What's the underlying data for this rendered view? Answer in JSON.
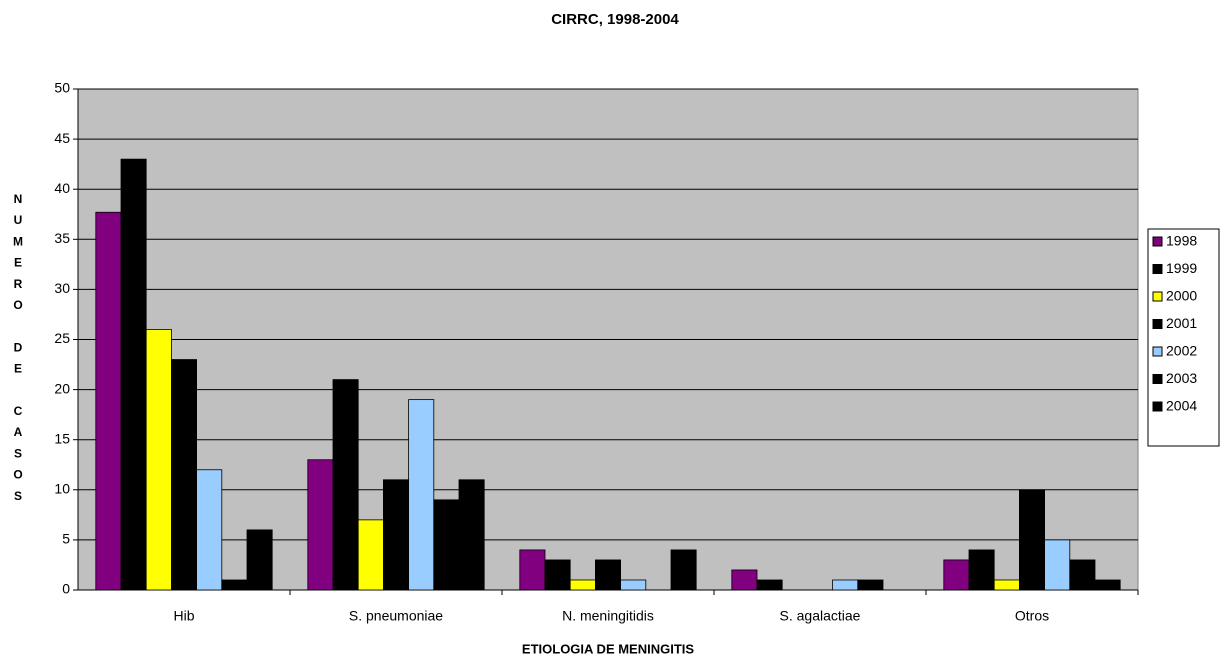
{
  "chart_data": {
    "type": "bar",
    "title": "CIRRC, 1998-2004",
    "ylabel": "NUMERO DE CASOS",
    "xlabel": "ETIOLOGIA DE MENINGITIS",
    "categories": [
      "Hib",
      "S. pneumoniae",
      "N. meningitidis",
      "S. agalactiae",
      "Otros"
    ],
    "series": [
      {
        "name": "1998",
        "color": "#800080",
        "values": [
          37.7,
          13,
          4,
          2,
          3
        ]
      },
      {
        "name": "1999",
        "color": "#000000",
        "values": [
          43,
          21,
          3,
          1,
          4
        ]
      },
      {
        "name": "2000",
        "color": "#ffff00",
        "values": [
          26,
          7,
          1,
          0,
          1
        ]
      },
      {
        "name": "2001",
        "color": "#000000",
        "values": [
          23,
          11,
          3,
          0,
          10
        ]
      },
      {
        "name": "2002",
        "color": "#99ccff",
        "values": [
          12,
          19,
          1,
          1,
          5
        ]
      },
      {
        "name": "2003",
        "color": "#000000",
        "values": [
          1,
          9,
          0,
          1,
          3
        ]
      },
      {
        "name": "2004",
        "color": "#000000",
        "values": [
          6,
          11,
          4,
          0,
          1
        ]
      }
    ],
    "ylim": [
      0,
      50
    ],
    "yticks": [
      0,
      5,
      10,
      15,
      20,
      25,
      30,
      35,
      40,
      45,
      50
    ],
    "grid": true,
    "legend": "right"
  }
}
